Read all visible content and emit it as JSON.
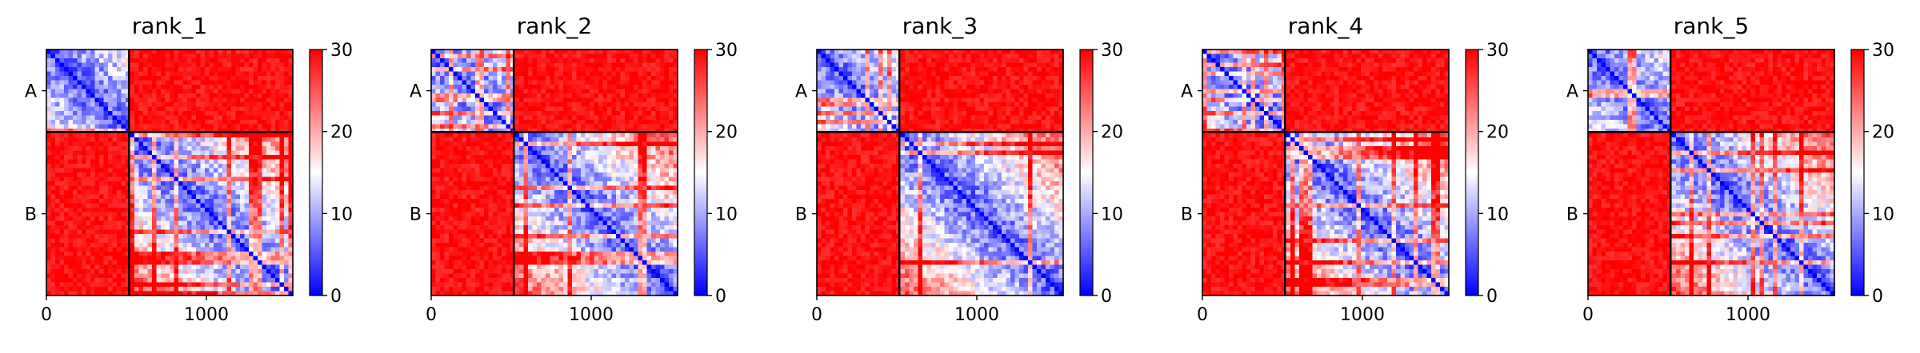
{
  "chart_data": [
    {
      "type": "heatmap",
      "title": "rank_1",
      "xticks": [
        "0",
        "1000"
      ],
      "yticks": [
        "A",
        "B"
      ],
      "chains": [
        {
          "name": "A",
          "start": 0,
          "end": 516
        },
        {
          "name": "B",
          "start": 516,
          "end": 1540
        }
      ],
      "xlim": [
        0,
        1540
      ],
      "colorbar": {
        "range": [
          0,
          30
        ],
        "ticks": [
          "0",
          "10",
          "20",
          "30"
        ],
        "colors": [
          "#0000ff",
          "#ffffff",
          "#ff0000"
        ]
      },
      "values_desc": {
        "intra_chain": "low (0-15)",
        "inter_chain": "high (~30)"
      }
    },
    {
      "type": "heatmap",
      "title": "rank_2",
      "xticks": [
        "0",
        "1000"
      ],
      "yticks": [
        "A",
        "B"
      ],
      "chains": [
        {
          "name": "A",
          "start": 0,
          "end": 516
        },
        {
          "name": "B",
          "start": 516,
          "end": 1540
        }
      ],
      "xlim": [
        0,
        1540
      ],
      "colorbar": {
        "range": [
          0,
          30
        ],
        "ticks": [
          "0",
          "10",
          "20",
          "30"
        ],
        "colors": [
          "#0000ff",
          "#ffffff",
          "#ff0000"
        ]
      },
      "values_desc": {
        "intra_chain": "low (0-15)",
        "inter_chain": "high (~30)"
      }
    },
    {
      "type": "heatmap",
      "title": "rank_3",
      "xticks": [
        "0",
        "1000"
      ],
      "yticks": [
        "A",
        "B"
      ],
      "chains": [
        {
          "name": "A",
          "start": 0,
          "end": 516
        },
        {
          "name": "B",
          "start": 516,
          "end": 1540
        }
      ],
      "xlim": [
        0,
        1540
      ],
      "colorbar": {
        "range": [
          0,
          30
        ],
        "ticks": [
          "0",
          "10",
          "20",
          "30"
        ],
        "colors": [
          "#0000ff",
          "#ffffff",
          "#ff0000"
        ]
      },
      "values_desc": {
        "intra_chain": "low (0-15)",
        "inter_chain": "high (~30)"
      }
    },
    {
      "type": "heatmap",
      "title": "rank_4",
      "xticks": [
        "0",
        "1000"
      ],
      "yticks": [
        "A",
        "B"
      ],
      "chains": [
        {
          "name": "A",
          "start": 0,
          "end": 516
        },
        {
          "name": "B",
          "start": 516,
          "end": 1540
        }
      ],
      "xlim": [
        0,
        1540
      ],
      "colorbar": {
        "range": [
          0,
          30
        ],
        "ticks": [
          "0",
          "10",
          "20",
          "30"
        ],
        "colors": [
          "#0000ff",
          "#ffffff",
          "#ff0000"
        ]
      },
      "values_desc": {
        "intra_chain": "low (0-15)",
        "inter_chain": "high (~30)"
      }
    },
    {
      "type": "heatmap",
      "title": "rank_5",
      "xticks": [
        "0",
        "1000"
      ],
      "yticks": [
        "A",
        "B"
      ],
      "chains": [
        {
          "name": "A",
          "start": 0,
          "end": 516
        },
        {
          "name": "B",
          "start": 516,
          "end": 1540
        }
      ],
      "xlim": [
        0,
        1540
      ],
      "colorbar": {
        "range": [
          0,
          30
        ],
        "ticks": [
          "0",
          "10",
          "20",
          "30"
        ],
        "colors": [
          "#0000ff",
          "#ffffff",
          "#ff0000"
        ]
      },
      "values_desc": {
        "intra_chain": "low (0-15)",
        "inter_chain": "high (~30)"
      }
    }
  ]
}
